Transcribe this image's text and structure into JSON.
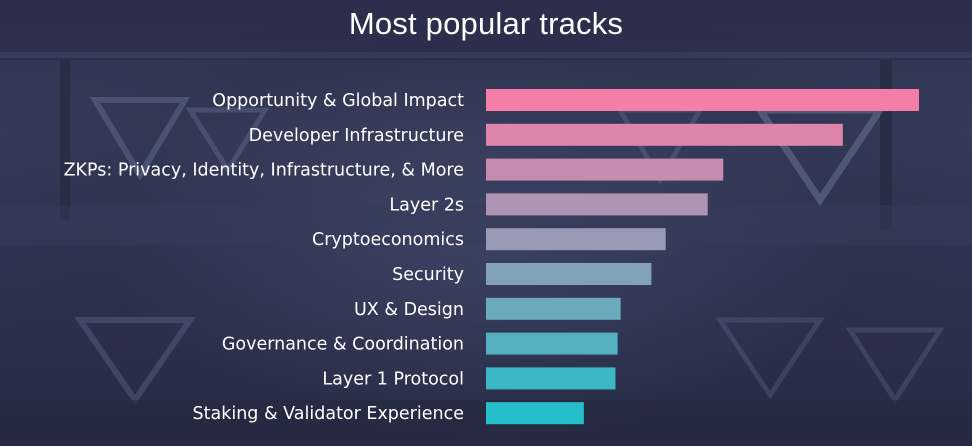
{
  "chart_data": {
    "type": "bar",
    "orientation": "horizontal",
    "title": "Most popular tracks",
    "xlabel": "",
    "ylabel": "",
    "categories": [
      "Opportunity & Global Impact",
      "Developer Infrastructure",
      "ZKPs: Privacy, Identity, Infrastructure, & More",
      "Layer 2s",
      "Cryptoeconomics",
      "Security",
      "UX & Design",
      "Governance & Coordination",
      "Layer 1 Protocol",
      "Staking & Validator Experience"
    ],
    "values": [
      100,
      82.4,
      54.8,
      51.2,
      41.5,
      38.2,
      31.1,
      30.4,
      29.9,
      22.6
    ],
    "xlim": [
      0,
      100
    ],
    "grid": false,
    "legend": "none",
    "colors": {
      "start": "#f47ea8",
      "end": "#26bec8"
    }
  }
}
